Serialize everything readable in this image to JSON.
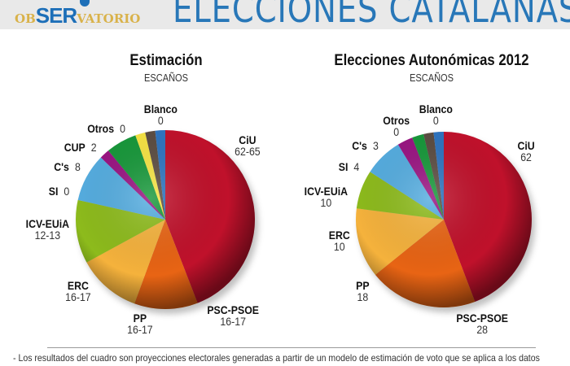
{
  "header": {
    "logo": {
      "prefix": "OB",
      "brand": "SER",
      "suffix": "VATORIO"
    },
    "title": "ELECCIONES CATALANAS",
    "title_color": "#2877b8",
    "background": "#e9e9e9"
  },
  "footnote": "- Los resultados del cuadro son proyecciones electorales generadas a partir de un modelo de estimación de voto que se aplica a los datos",
  "colors": {
    "CiU": "#c0112b",
    "PSC-PSOE": "#e86414",
    "PP": "#f5b23c",
    "ERC": "#8dbb1c",
    "ICV-EUiA": "#55ade0",
    "SI": "#9a1482",
    "C's": "#17983a",
    "CUP": "#f7e443",
    "Otros": "#5c4d42",
    "Blanco": "#2e74c0"
  },
  "chart_data": [
    {
      "type": "pie",
      "title": "Estimación",
      "subtitle": "ESCAÑOS",
      "slices": [
        {
          "label": "CiU",
          "display": "62-65",
          "value": 63.5
        },
        {
          "label": "PSC-PSOE",
          "display": "16-17",
          "value": 16.5
        },
        {
          "label": "PP",
          "display": "16-17",
          "value": 16.5
        },
        {
          "label": "ERC",
          "display": "16-17",
          "value": 16.5
        },
        {
          "label": "ICV-EUiA",
          "display": "12-13",
          "value": 12.5
        },
        {
          "label": "SI",
          "display": "0",
          "value": 0
        },
        {
          "label": "C's",
          "display": "8",
          "value": 8
        },
        {
          "label": "CUP",
          "display": "2",
          "value": 2
        },
        {
          "label": "Otros",
          "display": "0",
          "value": 0
        },
        {
          "label": "Blanco",
          "display": "0",
          "value": 0
        }
      ]
    },
    {
      "type": "pie",
      "title": "Elecciones Autonómicas 2012",
      "subtitle": "ESCAÑOS",
      "slices": [
        {
          "label": "CiU",
          "display": "62",
          "value": 62
        },
        {
          "label": "PSC-PSOE",
          "display": "28",
          "value": 28
        },
        {
          "label": "PP",
          "display": "18",
          "value": 18
        },
        {
          "label": "ERC",
          "display": "10",
          "value": 10
        },
        {
          "label": "ICV-EUiA",
          "display": "10",
          "value": 10
        },
        {
          "label": "SI",
          "display": "4",
          "value": 4
        },
        {
          "label": "C's",
          "display": "3",
          "value": 3
        },
        {
          "label": "Otros",
          "display": "0",
          "value": 0
        },
        {
          "label": "Blanco",
          "display": "0",
          "value": 0
        }
      ]
    }
  ]
}
